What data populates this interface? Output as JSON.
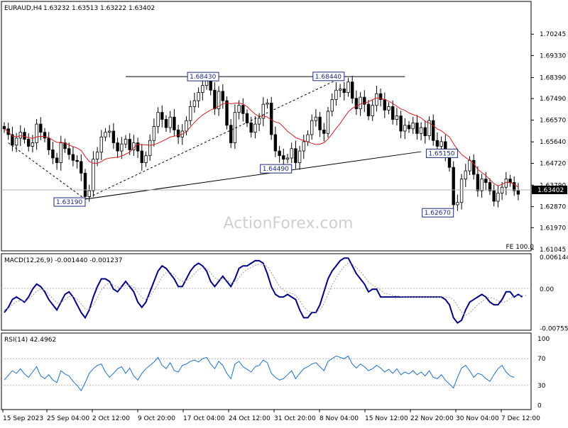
{
  "chart_data": [
    {
      "type": "candlestick",
      "title": "EURAUD,H4",
      "ohlc_header": {
        "open": "1.63232",
        "high": "1.63513",
        "low": "1.63222",
        "close": "1.63402"
      },
      "last_price_label": "1.63402",
      "ylim": [
        1.6104,
        1.7104
      ],
      "y_ticks": [
        "1.70245",
        "1.69330",
        "1.68390",
        "1.67490",
        "1.66570",
        "1.65640",
        "1.64720",
        "1.63790",
        "1.62870",
        "1.61970",
        "1.61045"
      ],
      "x_ticks": [
        "15 Sep 2023",
        "25 Sep 04:00",
        "2 Oct 12:00",
        "9 Oct 20:00",
        "17 Oct 04:00",
        "24 Oct 12:00",
        "31 Oct 20:00",
        "8 Nov 04:00",
        "15 Nov 12:00",
        "22 Nov 20:00",
        "30 Nov 04:00",
        "7 Dec 12:00"
      ],
      "fe_label": "FE 100.0",
      "annotations": [
        {
          "text": "1.63190",
          "value": 1.6319,
          "bar": 20
        },
        {
          "text": "1.68430",
          "value": 1.6843,
          "bar": 53
        },
        {
          "text": "1.64490",
          "value": 1.6449,
          "bar": 71
        },
        {
          "text": "1.68440",
          "value": 1.6844,
          "bar": 84
        },
        {
          "text": "1.65150",
          "value": 1.6515,
          "bar": 112
        },
        {
          "text": "1.62670",
          "value": 1.6267,
          "bar": 111
        }
      ],
      "trend_lines": [
        {
          "style": "solid",
          "from": {
            "bar": 30,
            "value": 1.6843
          },
          "to": {
            "bar": 99,
            "value": 1.6843
          }
        },
        {
          "style": "solid",
          "from": {
            "bar": 20,
            "value": 1.6319
          },
          "to": {
            "bar": 103,
            "value": 1.6522
          }
        },
        {
          "style": "dashed",
          "from": {
            "bar": 1,
            "value": 1.656
          },
          "to": {
            "bar": 20,
            "value": 1.6319
          }
        },
        {
          "style": "dashed",
          "from": {
            "bar": 20,
            "value": 1.6319
          },
          "to": {
            "bar": 84,
            "value": 1.6844
          }
        }
      ],
      "series": [
        {
          "name": "EURAUD",
          "closes": [
            1.662,
            1.6595,
            1.655,
            1.658,
            1.6605,
            1.6575,
            1.6545,
            1.656,
            1.664,
            1.6605,
            1.658,
            1.653,
            1.6495,
            1.6475,
            1.656,
            1.6535,
            1.651,
            1.6485,
            1.648,
            1.643,
            1.633,
            1.6355,
            1.649,
            1.652,
            1.6585,
            1.6605,
            1.661,
            1.656,
            1.6525,
            1.6555,
            1.6575,
            1.653,
            1.656,
            1.6525,
            1.6475,
            1.6505,
            1.657,
            1.663,
            1.669,
            1.666,
            1.6625,
            1.667,
            1.6615,
            1.6585,
            1.661,
            1.6655,
            1.6715,
            1.674,
            1.6775,
            1.6805,
            1.6825,
            1.6785,
            1.6705,
            1.678,
            1.674,
            1.6635,
            1.656,
            1.669,
            1.672,
            1.6685,
            1.6645,
            1.6605,
            1.664,
            1.6665,
            1.6725,
            1.673,
            1.6595,
            1.6525,
            1.6505,
            1.649,
            1.6495,
            1.6535,
            1.6475,
            1.6525,
            1.6565,
            1.6595,
            1.6655,
            1.667,
            1.6615,
            1.66,
            1.6695,
            1.6745,
            1.6785,
            1.679,
            1.6775,
            1.682,
            1.675,
            1.6705,
            1.6755,
            1.6725,
            1.6675,
            1.672,
            1.677,
            1.6745,
            1.67,
            1.6715,
            1.666,
            1.6675,
            1.661,
            1.6635,
            1.662,
            1.6645,
            1.66,
            1.6625,
            1.659,
            1.6655,
            1.657,
            1.6545,
            1.6565,
            1.6515,
            1.6455,
            1.6295,
            1.6305,
            1.6405,
            1.644,
            1.6485,
            1.6425,
            1.6355,
            1.6405,
            1.639,
            1.6355,
            1.631,
            1.6345,
            1.637,
            1.6405,
            1.639,
            1.6355,
            1.634
          ]
        },
        {
          "name": "MA",
          "note": "red moving average line",
          "color": "#d22020"
        }
      ]
    },
    {
      "type": "line",
      "title": "MACD(12,26,9) -0.001440 -0.001237",
      "ylim": [
        -0.0075,
        0.0063
      ],
      "y_ticks": [
        "0.006144",
        "0.00",
        "-0.007555"
      ],
      "series": [
        {
          "name": "MACD",
          "color": "#000080",
          "values": [
            -0.0045,
            -0.0035,
            -0.002,
            -0.0015,
            -0.002,
            -0.0025,
            -0.0015,
            0.0,
            0.001,
            0.0005,
            -0.0005,
            -0.002,
            -0.003,
            -0.004,
            -0.0025,
            -0.001,
            -0.0005,
            -0.0015,
            -0.003,
            -0.0045,
            -0.0055,
            -0.004,
            -0.0015,
            0.0005,
            0.002,
            0.002,
            0.0015,
            0.0,
            -0.0005,
            0.0005,
            0.0015,
            0.0005,
            -0.0005,
            -0.0025,
            -0.0035,
            -0.0025,
            -0.0005,
            0.0015,
            0.0035,
            0.0045,
            0.004,
            0.003,
            0.002,
            0.0005,
            0.0005,
            0.002,
            0.0035,
            0.0045,
            0.005,
            0.0045,
            0.0035,
            0.0015,
            0.0005,
            0.0015,
            0.0025,
            0.0015,
            0.0005,
            0.002,
            0.004,
            0.0045,
            0.0045,
            0.005,
            0.0055,
            0.0055,
            0.005,
            0.003,
            0.0005,
            -0.001,
            -0.0015,
            -0.0015,
            -0.001,
            -0.0015,
            -0.002,
            -0.004,
            -0.0055,
            -0.0055,
            -0.0045,
            -0.0045,
            -0.003,
            -0.0005,
            0.002,
            0.0035,
            0.0045,
            0.0055,
            0.006,
            0.006,
            0.0045,
            0.003,
            0.002,
            0.001,
            -0.0005,
            0.0,
            0.0,
            -0.0015,
            -0.0015,
            -0.0015,
            -0.0015,
            -0.0015,
            -0.0015,
            -0.0015,
            -0.0015,
            -0.0015,
            -0.0015,
            -0.0015,
            -0.0015,
            -0.0015,
            -0.0015,
            -0.0015,
            -0.0015,
            -0.002,
            -0.003,
            -0.0055,
            -0.0065,
            -0.006,
            -0.004,
            -0.0025,
            -0.002,
            -0.0015,
            -0.001,
            -0.0015,
            -0.0025,
            -0.003,
            -0.003,
            -0.002,
            -0.0005,
            -0.0005,
            -0.0015,
            -0.001,
            -0.0015
          ]
        },
        {
          "name": "Signal",
          "color": "#999999",
          "style": "dotted",
          "values": [
            -0.004,
            -0.0037,
            -0.003,
            -0.0024,
            -0.0022,
            -0.0023,
            -0.002,
            -0.0012,
            -0.0004,
            0.0,
            -0.0002,
            -0.001,
            -0.0018,
            -0.0026,
            -0.0026,
            -0.002,
            -0.0014,
            -0.0014,
            -0.002,
            -0.0028,
            -0.0038,
            -0.0039,
            -0.003,
            -0.0016,
            -0.0002,
            0.0008,
            0.0012,
            0.0008,
            0.0004,
            0.0004,
            0.0008,
            0.0008,
            0.0004,
            -0.0006,
            -0.0016,
            -0.002,
            -0.0014,
            -0.0002,
            0.001,
            0.0024,
            0.0032,
            0.0032,
            0.0028,
            0.002,
            0.0015,
            0.0016,
            0.0022,
            0.003,
            0.0038,
            0.0042,
            0.004,
            0.0032,
            0.0022,
            0.0018,
            0.002,
            0.0018,
            0.0012,
            0.0014,
            0.0022,
            0.0032,
            0.0038,
            0.0042,
            0.0046,
            0.0048,
            0.0048,
            0.0044,
            0.0032,
            0.0018,
            0.0006,
            -0.0002,
            -0.0006,
            -0.0008,
            -0.0012,
            -0.0022,
            -0.0034,
            -0.0042,
            -0.0044,
            -0.0044,
            -0.004,
            -0.0028,
            -0.001,
            0.0008,
            0.0022,
            0.0034,
            0.0044,
            0.005,
            0.0048,
            0.0042,
            0.0034,
            0.0024,
            0.0014,
            0.0008,
            0.0004,
            -0.0002,
            -0.0008,
            -0.001,
            -0.0012,
            -0.0013,
            -0.0014,
            -0.0015,
            -0.0015,
            -0.0015,
            -0.0015,
            -0.0015,
            -0.0015,
            -0.0015,
            -0.0015,
            -0.0015,
            -0.0015,
            -0.0015,
            -0.0016,
            -0.002,
            -0.0032,
            -0.0044,
            -0.005,
            -0.0046,
            -0.0038,
            -0.003,
            -0.0024,
            -0.0018,
            -0.0016,
            -0.0018,
            -0.0022,
            -0.0025,
            -0.0024,
            -0.0018,
            -0.0013,
            -0.0013,
            -0.0012,
            -0.0012
          ]
        }
      ]
    },
    {
      "type": "line",
      "title": "RSI(14) 42.4962",
      "ylim": [
        0,
        100
      ],
      "y_ticks": [
        "100",
        "70",
        "30",
        "0"
      ],
      "levels": [
        70,
        30
      ],
      "series": [
        {
          "name": "RSI",
          "color": "#1e6fc8",
          "values": [
            38,
            45,
            52,
            48,
            55,
            47,
            42,
            50,
            58,
            44,
            40,
            46,
            38,
            34,
            52,
            47,
            44,
            36,
            30,
            22,
            34,
            48,
            55,
            60,
            62,
            50,
            42,
            48,
            55,
            58,
            48,
            56,
            44,
            38,
            48,
            55,
            60,
            65,
            72,
            60,
            55,
            64,
            52,
            50,
            60,
            62,
            66,
            68,
            65,
            70,
            72,
            62,
            55,
            66,
            60,
            48,
            40,
            62,
            66,
            58,
            54,
            50,
            58,
            60,
            68,
            64,
            48,
            42,
            38,
            40,
            46,
            52,
            40,
            48,
            55,
            58,
            62,
            64,
            58,
            52,
            66,
            70,
            74,
            72,
            70,
            74,
            62,
            56,
            62,
            58,
            52,
            55,
            60,
            56,
            50,
            54,
            48,
            55,
            46,
            50,
            47,
            52,
            46,
            50,
            44,
            52,
            42,
            40,
            46,
            38,
            32,
            26,
            42,
            56,
            60,
            52,
            42,
            48,
            46,
            40,
            36,
            46,
            55,
            60,
            50,
            44,
            42
          ]
        }
      ]
    }
  ],
  "watermark": "ActionForex.com"
}
